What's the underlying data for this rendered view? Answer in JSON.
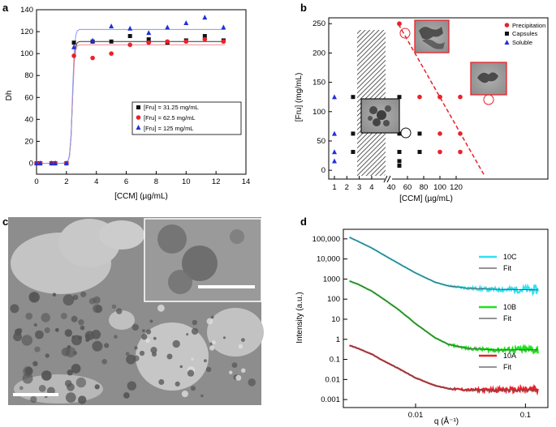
{
  "panels": {
    "a": "a",
    "b": "b",
    "c": "c",
    "d": "d"
  },
  "colors": {
    "black": "#111111",
    "red": "#e8222b",
    "blue": "#2230d6",
    "cyan": "#33e0f2",
    "green": "#1fe01f",
    "fit": "#555555"
  },
  "chart_data": [
    {
      "panel": "a",
      "type": "scatter",
      "xlabel": "[CCM] (µg/mL)",
      "ylabel": "Dh",
      "xlim": [
        0,
        14
      ],
      "ylim": [
        -10,
        140
      ],
      "xticks": [
        0,
        2,
        4,
        6,
        8,
        10,
        12,
        14
      ],
      "yticks": [
        0,
        20,
        40,
        60,
        80,
        100,
        120,
        140
      ],
      "legend_position": "center-right",
      "series": [
        {
          "name": "[Fru] = 31.25 mg/mL",
          "color": "black",
          "marker": "square",
          "x": [
            0,
            0.25,
            1.0,
            1.25,
            2.0,
            2.5,
            3.75,
            5.0,
            6.25,
            7.5,
            8.75,
            10.0,
            11.25,
            12.5
          ],
          "y": [
            0,
            0,
            0,
            0,
            0,
            110,
            111,
            111,
            116,
            113,
            110,
            112,
            116,
            112
          ],
          "fit_plateau": 111
        },
        {
          "name": "[Fru] = 62.5 mg/mL",
          "color": "red",
          "marker": "circle",
          "x": [
            0,
            0.25,
            1.0,
            1.25,
            2.0,
            2.5,
            3.75,
            5.0,
            6.25,
            7.5,
            8.75,
            10.0,
            11.25,
            12.5
          ],
          "y": [
            0,
            0,
            0,
            0,
            0,
            98,
            96,
            100,
            108,
            110,
            111,
            111,
            113,
            111
          ],
          "fit_plateau": 108
        },
        {
          "name": "[Fru] = 125 mg/mL",
          "color": "blue",
          "marker": "triangle",
          "x": [
            0,
            0.25,
            1.0,
            1.25,
            2.0,
            2.5,
            3.75,
            5.0,
            6.25,
            7.5,
            8.75,
            10.0,
            11.25,
            12.5
          ],
          "y": [
            0,
            0,
            0,
            0,
            0,
            106,
            112,
            125,
            123,
            119,
            124,
            128,
            133,
            124
          ],
          "fit_plateau": 122
        }
      ]
    },
    {
      "panel": "b",
      "type": "scatter",
      "xlabel": "[CCM] (µg/mL)",
      "ylabel": "[Fru] (mg/mL)",
      "ylim": [
        -15,
        260
      ],
      "yticks": [
        0,
        50,
        100,
        150,
        200,
        250
      ],
      "xticks": [
        "1",
        "2",
        "3",
        "4",
        "40",
        "60",
        "80",
        "100",
        "120"
      ],
      "x_axis_break": true,
      "legend_position": "top-right",
      "series": [
        {
          "name": "Precipitation",
          "color": "red",
          "marker": "circle",
          "x": [
            50,
            75,
            100,
            125,
            100,
            125,
            100,
            125,
            50,
            100
          ],
          "y": [
            250,
            125,
            125,
            125,
            62.5,
            62.5,
            31.25,
            31.25,
            250,
            125
          ]
        },
        {
          "name": "Capsules",
          "color": "black",
          "marker": "square",
          "x": [
            2.5,
            2.5,
            2.5,
            50,
            50,
            50,
            50,
            50,
            75,
            75
          ],
          "y": [
            125,
            62.5,
            31.25,
            125,
            62.5,
            31.25,
            15.6,
            7.8,
            62.5,
            31.25
          ]
        },
        {
          "name": "Soluble",
          "color": "blue",
          "marker": "triangle",
          "x": [
            1,
            1,
            1,
            1
          ],
          "y": [
            125,
            62.5,
            31.25,
            15.6
          ]
        }
      ]
    },
    {
      "panel": "d",
      "type": "line",
      "xlabel": "q (Å⁻¹)",
      "ylabel": "Intensity (a.u.)",
      "x_scale": "log",
      "y_scale": "log",
      "xlim": [
        0.0022,
        0.16
      ],
      "ylim": [
        0.0004,
        300000
      ],
      "xticks": [
        "0.01",
        "0.1"
      ],
      "yticks": [
        "0.001",
        "0.01",
        "0.1",
        "1",
        "10",
        "100",
        "1000",
        "10,000",
        "100,000"
      ],
      "series": [
        {
          "name": "10C",
          "color": "cyan",
          "x": [
            0.0025,
            0.003,
            0.004,
            0.005,
            0.007,
            0.01,
            0.015,
            0.02,
            0.03,
            0.05,
            0.08,
            0.13
          ],
          "y": [
            120000,
            75000,
            35000,
            17000,
            6000,
            2000,
            700,
            450,
            350,
            310,
            300,
            290
          ]
        },
        {
          "name": "Fit",
          "color": "fit",
          "x": [
            0.0025,
            0.13
          ],
          "y": [
            120000,
            290
          ]
        },
        {
          "name": "10B",
          "color": "green",
          "x": [
            0.0025,
            0.003,
            0.004,
            0.005,
            0.007,
            0.01,
            0.015,
            0.02,
            0.03,
            0.05,
            0.08,
            0.13
          ],
          "y": [
            800,
            550,
            250,
            110,
            30,
            6,
            1.2,
            0.55,
            0.35,
            0.3,
            0.3,
            0.3
          ]
        },
        {
          "name": "Fit",
          "color": "fit",
          "x": [
            0.0025,
            0.13
          ],
          "y": [
            800,
            0.3
          ]
        },
        {
          "name": "10A",
          "color": "red",
          "x": [
            0.0025,
            0.003,
            0.004,
            0.005,
            0.007,
            0.01,
            0.015,
            0.02,
            0.03,
            0.05,
            0.08,
            0.13
          ],
          "y": [
            0.5,
            0.35,
            0.18,
            0.09,
            0.035,
            0.012,
            0.005,
            0.0035,
            0.003,
            0.003,
            0.003,
            0.003
          ]
        },
        {
          "name": "Fit",
          "color": "fit",
          "x": [
            0.0025,
            0.13
          ],
          "y": [
            0.5,
            0.003
          ]
        }
      ]
    }
  ]
}
